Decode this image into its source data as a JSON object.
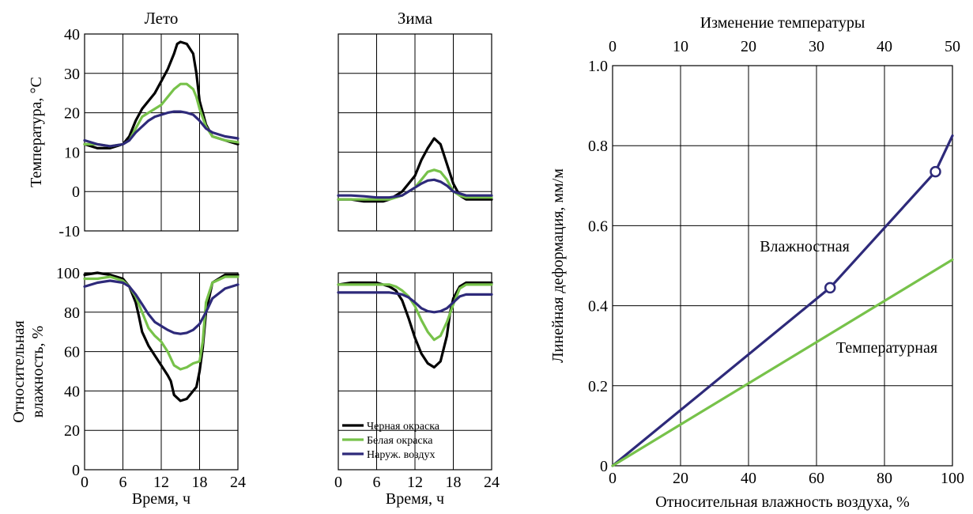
{
  "colors": {
    "black": "#000000",
    "green": "#77c24a",
    "navy": "#2e2a7a"
  },
  "legend": [
    "Черная окраска",
    "Белая окраска",
    "Наруж. воздух"
  ],
  "chart_data": [
    {
      "type": "line",
      "title": "Лето",
      "xlabel": "",
      "ylabel": "Температура, °C",
      "xlim": [
        0,
        24
      ],
      "ylim": [
        -10,
        40
      ],
      "xticks": [
        0,
        6,
        12,
        18,
        24
      ],
      "yticks": [
        -10,
        0,
        10,
        20,
        30,
        40
      ],
      "ytick_labels": [
        "-10",
        "0",
        "10",
        "20",
        "30",
        "40"
      ],
      "grid": true,
      "series": [
        {
          "name": "Черная окраска",
          "color": "black",
          "x": [
            0,
            2,
            4,
            6,
            7,
            8,
            9,
            10,
            11,
            12,
            13,
            14,
            14.5,
            15,
            16,
            17,
            17.5,
            18,
            19,
            20,
            22,
            24
          ],
          "y": [
            12,
            11,
            11,
            12,
            14,
            18,
            21,
            23,
            25,
            28,
            31,
            35,
            37.5,
            38,
            37.5,
            35,
            30,
            23,
            17,
            14,
            13,
            12
          ]
        },
        {
          "name": "Белая окраска",
          "color": "green",
          "x": [
            0,
            2,
            4,
            6,
            7,
            8,
            9,
            10,
            11,
            12,
            13,
            14,
            15,
            16,
            17,
            17.5,
            18,
            19,
            20,
            22,
            24
          ],
          "y": [
            12,
            12,
            11.5,
            12,
            13,
            16,
            19,
            20,
            21,
            22,
            24,
            26,
            27.3,
            27.3,
            26,
            24,
            21,
            16.5,
            14,
            13,
            12.5
          ]
        },
        {
          "name": "Наруж. воздух",
          "color": "navy",
          "x": [
            0,
            2,
            4,
            6,
            7,
            8,
            9,
            10,
            11,
            12,
            13,
            14,
            15,
            16,
            17,
            18,
            19,
            20,
            22,
            24
          ],
          "y": [
            13,
            12,
            11.5,
            12,
            13,
            15,
            16.5,
            18,
            19,
            19.5,
            20,
            20.3,
            20.3,
            20,
            19.5,
            18,
            16,
            15,
            14,
            13.5
          ]
        }
      ]
    },
    {
      "type": "line",
      "title": "Зима",
      "xlabel": "",
      "ylabel": "",
      "xlim": [
        0,
        24
      ],
      "ylim": [
        -10,
        40
      ],
      "xticks": [
        0,
        6,
        12,
        18,
        24
      ],
      "yticks": [
        -10,
        0,
        10,
        20,
        30,
        40
      ],
      "ytick_labels": [],
      "grid": true,
      "series": [
        {
          "name": "Черная окраска",
          "color": "black",
          "x": [
            0,
            2,
            4,
            6,
            7,
            8,
            9,
            10,
            11,
            12,
            13,
            14,
            15,
            16,
            17,
            18,
            19,
            20,
            22,
            24
          ],
          "y": [
            -2,
            -2,
            -2.5,
            -2.5,
            -2.5,
            -2,
            -1,
            0,
            2,
            4,
            8,
            11,
            13.5,
            12,
            7,
            2,
            -1,
            -2,
            -2,
            -2
          ]
        },
        {
          "name": "Белая окраска",
          "color": "green",
          "x": [
            0,
            2,
            4,
            6,
            7,
            8,
            9,
            10,
            11,
            12,
            13,
            14,
            15,
            16,
            17,
            18,
            19,
            20,
            22,
            24
          ],
          "y": [
            -2,
            -2,
            -2,
            -2,
            -2,
            -2,
            -1.5,
            -1,
            0,
            1,
            3,
            5,
            5.5,
            5,
            3,
            0,
            -1,
            -1.5,
            -1.5,
            -1.5
          ]
        },
        {
          "name": "Наруж. воздух",
          "color": "navy",
          "x": [
            0,
            2,
            4,
            6,
            8,
            10,
            11,
            12,
            13,
            14,
            15,
            16,
            17,
            18,
            19,
            20,
            22,
            24
          ],
          "y": [
            -1,
            -1,
            -1.2,
            -1.5,
            -1.5,
            -1,
            0,
            1,
            2,
            2.8,
            3,
            2.5,
            1.5,
            0,
            -0.5,
            -1,
            -1,
            -1
          ]
        }
      ]
    },
    {
      "type": "line",
      "title": "",
      "xlabel": "Время, ч",
      "ylabel": "Относительная влажность, %",
      "xlim": [
        0,
        24
      ],
      "ylim": [
        0,
        100
      ],
      "xticks": [
        0,
        6,
        12,
        18,
        24
      ],
      "xtick_labels": [
        "0",
        "6",
        "12",
        "18",
        "24"
      ],
      "yticks": [
        0,
        20,
        40,
        60,
        80,
        100
      ],
      "ytick_labels": [
        "0",
        "20",
        "40",
        "60",
        "80",
        "100"
      ],
      "grid": true,
      "series": [
        {
          "name": "Черная окраска",
          "color": "black",
          "x": [
            0,
            2,
            4,
            6,
            7,
            8,
            8.5,
            9,
            10,
            11,
            12,
            13,
            13.5,
            14,
            15,
            16,
            17,
            17.5,
            18,
            18.5,
            19,
            20,
            22,
            24
          ],
          "y": [
            99,
            100,
            99,
            97,
            93,
            85,
            78,
            70,
            63,
            58,
            53,
            48,
            45,
            38,
            35,
            36,
            40,
            42,
            50,
            62,
            80,
            95,
            99,
            99
          ]
        },
        {
          "name": "Белая окраска",
          "color": "green",
          "x": [
            0,
            2,
            4,
            6,
            7,
            8,
            9,
            10,
            11,
            12,
            13,
            14,
            15,
            16,
            17,
            18,
            18.5,
            19,
            20,
            22,
            24
          ],
          "y": [
            97,
            97,
            98,
            96,
            93,
            88,
            80,
            72,
            68,
            65,
            60,
            53,
            51,
            52,
            54,
            55,
            65,
            85,
            95,
            98,
            98
          ]
        },
        {
          "name": "Наруж. воздух",
          "color": "navy",
          "x": [
            0,
            2,
            4,
            6,
            7,
            8,
            9,
            10,
            11,
            12,
            13,
            14,
            15,
            16,
            17,
            18,
            19,
            20,
            22,
            24
          ],
          "y": [
            93,
            95,
            96,
            95,
            93,
            89,
            84,
            79,
            75,
            73,
            71,
            69.5,
            69,
            69.5,
            71,
            74,
            80,
            87,
            92,
            94
          ]
        }
      ]
    },
    {
      "type": "line",
      "title": "",
      "xlabel": "Время, ч",
      "ylabel": "",
      "xlim": [
        0,
        24
      ],
      "ylim": [
        0,
        100
      ],
      "xticks": [
        0,
        6,
        12,
        18,
        24
      ],
      "xtick_labels": [
        "0",
        "6",
        "12",
        "18",
        "24"
      ],
      "yticks": [
        0,
        20,
        40,
        60,
        80,
        100
      ],
      "ytick_labels": [],
      "grid": true,
      "series": [
        {
          "name": "Черная окраска",
          "color": "black",
          "x": [
            0,
            2,
            4,
            6,
            7,
            8,
            9,
            10,
            11,
            12,
            13,
            14,
            15,
            16,
            17,
            17.5,
            18,
            19,
            20,
            22,
            24
          ],
          "y": [
            94,
            95,
            95,
            95,
            94,
            93,
            91,
            86,
            77,
            67,
            59,
            54,
            52,
            55,
            68,
            80,
            87,
            93,
            95,
            95,
            95
          ]
        },
        {
          "name": "Белая окраска",
          "color": "green",
          "x": [
            0,
            2,
            4,
            6,
            8,
            9,
            10,
            11,
            12,
            13,
            14,
            15,
            16,
            17,
            18,
            19,
            20,
            22,
            24
          ],
          "y": [
            94,
            94,
            94,
            94,
            94,
            93,
            91,
            88,
            83,
            76,
            70,
            66,
            68,
            75,
            84,
            92,
            94,
            94,
            94
          ]
        },
        {
          "name": "Наруж. воздух",
          "color": "navy",
          "x": [
            0,
            2,
            4,
            6,
            8,
            9,
            10,
            11,
            12,
            13,
            14,
            15,
            16,
            17,
            18,
            19,
            20,
            22,
            24
          ],
          "y": [
            90,
            90,
            90,
            90,
            90,
            89.5,
            89,
            87.5,
            85,
            82,
            80.5,
            80,
            80.5,
            82,
            85,
            88,
            89,
            89,
            89
          ]
        }
      ]
    },
    {
      "type": "line",
      "title": "",
      "xlabel": "Относительная влажность воздуха, %",
      "ylabel": "Линейная деформация, мм/м",
      "x2label": "Изменение температуры",
      "xlim": [
        0,
        100
      ],
      "ylim": [
        0,
        1.0
      ],
      "xticks": [
        0,
        20,
        40,
        60,
        80,
        100
      ],
      "xtick_labels": [
        "0",
        "20",
        "40",
        "60",
        "80",
        "100"
      ],
      "x2ticks": [
        0,
        10,
        20,
        30,
        40,
        50
      ],
      "x2tick_labels": [
        "0",
        "10",
        "20",
        "30",
        "40",
        "50"
      ],
      "yticks": [
        0,
        0.2,
        0.4,
        0.6,
        0.8,
        1.0
      ],
      "ytick_labels": [
        "0",
        "0.2",
        "0.4",
        "0.6",
        "0.8",
        "1.0"
      ],
      "grid": true,
      "series": [
        {
          "name": "Влажностная",
          "color": "navy",
          "x": [
            0,
            64,
            95,
            100
          ],
          "y": [
            0,
            0.445,
            0.735,
            0.825
          ],
          "markers_at": [
            64,
            95
          ]
        },
        {
          "name": "Температурная",
          "color": "green",
          "x": [
            0,
            100
          ],
          "y": [
            0,
            0.515
          ]
        }
      ]
    }
  ]
}
